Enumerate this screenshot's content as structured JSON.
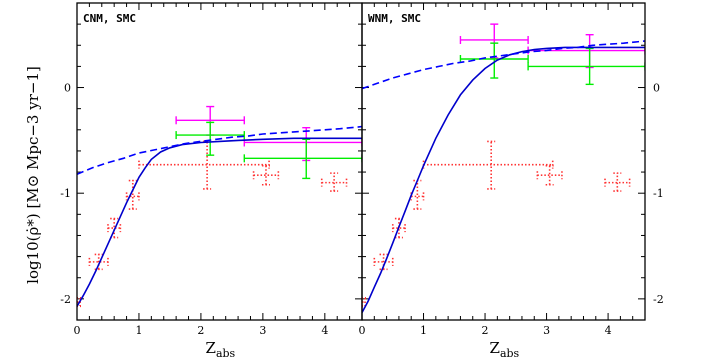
{
  "ylabel": "log10(ρ̇*) [M⊙ Mpc−3 yr−1]",
  "chart_data": [
    {
      "type": "scatter",
      "panel_label": "CNM, SMC",
      "xlabel": "Zabs",
      "xlim": [
        0,
        4.6
      ],
      "ylim": [
        -2.2,
        0.8
      ],
      "xticks": [
        0,
        1,
        2,
        3,
        4
      ],
      "yticks": [
        -2,
        -1,
        0
      ],
      "colors": {
        "model_solid": "#0000cc",
        "model_dashed": "#0000ff",
        "red": "#ff3333",
        "magenta": "#ff00ff",
        "green": "#00ee00"
      },
      "series": [
        {
          "style": "solid",
          "color": "#0000cc",
          "x": [
            0,
            0.1,
            0.2,
            0.3,
            0.4,
            0.5,
            0.6,
            0.7,
            0.8,
            0.9,
            1.0,
            1.1,
            1.2,
            1.35,
            1.5,
            1.7,
            2.0,
            2.3,
            2.6,
            3.0,
            3.5,
            4.0,
            4.6
          ],
          "y": [
            -2.07,
            -1.97,
            -1.86,
            -1.74,
            -1.61,
            -1.48,
            -1.35,
            -1.22,
            -1.09,
            -0.97,
            -0.85,
            -0.76,
            -0.68,
            -0.61,
            -0.57,
            -0.54,
            -0.52,
            -0.51,
            -0.5,
            -0.49,
            -0.48,
            -0.48,
            -0.48
          ]
        },
        {
          "style": "dashed",
          "color": "#0000ff",
          "x": [
            0,
            0.25,
            0.5,
            0.75,
            1.0,
            1.25,
            1.5,
            1.75,
            2.0,
            2.25,
            2.5,
            2.75,
            3.0,
            3.25,
            3.5,
            3.75,
            4.0,
            4.25,
            4.6
          ],
          "y": [
            -0.82,
            -0.76,
            -0.71,
            -0.67,
            -0.62,
            -0.59,
            -0.56,
            -0.53,
            -0.51,
            -0.49,
            -0.47,
            -0.46,
            -0.44,
            -0.43,
            -0.42,
            -0.41,
            -0.4,
            -0.39,
            -0.37
          ]
        }
      ],
      "error_points": [
        {
          "color": "#ff3333",
          "dotted": true,
          "x": 0.0,
          "xlo": 0.0,
          "xhi": 0.05,
          "y": -2.03,
          "ylo": -2.07,
          "yhi": -1.99
        },
        {
          "color": "#ff3333",
          "dotted": true,
          "x": 0.35,
          "xlo": 0.2,
          "xhi": 0.5,
          "y": -1.65,
          "ylo": -1.72,
          "yhi": -1.58
        },
        {
          "color": "#ff3333",
          "dotted": true,
          "x": 0.6,
          "xlo": 0.5,
          "xhi": 0.7,
          "y": -1.33,
          "ylo": -1.42,
          "yhi": -1.24
        },
        {
          "color": "#ff3333",
          "dotted": true,
          "x": 0.9,
          "xlo": 0.8,
          "xhi": 1.0,
          "y": -1.03,
          "ylo": -1.15,
          "yhi": -0.88
        },
        {
          "color": "#ff3333",
          "dotted": true,
          "x": 2.1,
          "xlo": 1.0,
          "xhi": 3.1,
          "y": -0.73,
          "ylo": -0.96,
          "yhi": -0.51
        },
        {
          "color": "#ff3333",
          "dotted": true,
          "x": 3.05,
          "xlo": 2.85,
          "xhi": 3.25,
          "y": -0.83,
          "ylo": -0.92,
          "yhi": -0.74
        },
        {
          "color": "#ff3333",
          "dotted": true,
          "x": 4.15,
          "xlo": 3.95,
          "xhi": 4.35,
          "y": -0.9,
          "ylo": -0.98,
          "yhi": -0.81
        },
        {
          "color": "#ff00ff",
          "dotted": false,
          "x": 2.15,
          "xlo": 1.6,
          "xhi": 2.7,
          "y": -0.31,
          "ylo": -0.45,
          "yhi": -0.18
        },
        {
          "color": "#ff00ff",
          "dotted": false,
          "x": 3.7,
          "xlo": 2.7,
          "xhi": 4.6,
          "y": -0.52,
          "ylo": -0.69,
          "yhi": -0.38
        },
        {
          "color": "#00ee00",
          "dotted": false,
          "x": 2.15,
          "xlo": 1.6,
          "xhi": 2.7,
          "y": -0.45,
          "ylo": -0.64,
          "yhi": -0.33
        },
        {
          "color": "#00ee00",
          "dotted": false,
          "x": 3.7,
          "xlo": 2.7,
          "xhi": 4.6,
          "y": -0.67,
          "ylo": -0.86,
          "yhi": -0.49
        }
      ]
    },
    {
      "type": "scatter",
      "panel_label": "WNM, SMC",
      "xlabel": "Zabs",
      "xlim": [
        0,
        4.6
      ],
      "ylim": [
        -2.2,
        0.8
      ],
      "xticks": [
        0,
        1,
        2,
        3,
        4
      ],
      "yticks": [
        -2,
        -1,
        0
      ],
      "colors": {
        "model_solid": "#0000cc",
        "model_dashed": "#0000ff",
        "red": "#ff3333",
        "magenta": "#ff00ff",
        "green": "#00ee00"
      },
      "series": [
        {
          "style": "solid",
          "color": "#0000cc",
          "x": [
            0,
            0.1,
            0.2,
            0.3,
            0.4,
            0.5,
            0.6,
            0.7,
            0.8,
            0.9,
            1.0,
            1.2,
            1.4,
            1.6,
            1.8,
            2.0,
            2.2,
            2.4,
            2.6,
            2.8,
            3.0,
            3.3,
            3.6,
            4.0,
            4.6
          ],
          "y": [
            -2.13,
            -2.02,
            -1.89,
            -1.76,
            -1.62,
            -1.47,
            -1.32,
            -1.17,
            -1.02,
            -0.88,
            -0.74,
            -0.48,
            -0.26,
            -0.07,
            0.07,
            0.18,
            0.26,
            0.31,
            0.34,
            0.36,
            0.37,
            0.38,
            0.38,
            0.38,
            0.38
          ]
        },
        {
          "style": "dashed",
          "color": "#0000ff",
          "x": [
            0,
            0.1,
            0.25,
            0.5,
            0.75,
            1.0,
            1.25,
            1.5,
            1.75,
            2.0,
            2.25,
            2.5,
            2.75,
            3.0,
            3.25,
            3.5,
            3.75,
            4.0,
            4.25,
            4.6
          ],
          "y": [
            -0.01,
            0.01,
            0.04,
            0.09,
            0.13,
            0.17,
            0.2,
            0.23,
            0.25,
            0.28,
            0.3,
            0.32,
            0.34,
            0.35,
            0.37,
            0.38,
            0.4,
            0.41,
            0.42,
            0.44
          ]
        }
      ],
      "error_points": [
        {
          "color": "#ff3333",
          "dotted": true,
          "x": 0.0,
          "xlo": 0.0,
          "xhi": 0.05,
          "y": -2.03,
          "ylo": -2.07,
          "yhi": -1.99
        },
        {
          "color": "#ff3333",
          "dotted": true,
          "x": 0.35,
          "xlo": 0.2,
          "xhi": 0.5,
          "y": -1.65,
          "ylo": -1.72,
          "yhi": -1.58
        },
        {
          "color": "#ff3333",
          "dotted": true,
          "x": 0.6,
          "xlo": 0.5,
          "xhi": 0.7,
          "y": -1.33,
          "ylo": -1.42,
          "yhi": -1.24
        },
        {
          "color": "#ff3333",
          "dotted": true,
          "x": 0.9,
          "xlo": 0.8,
          "xhi": 1.0,
          "y": -1.03,
          "ylo": -1.15,
          "yhi": -0.88
        },
        {
          "color": "#ff3333",
          "dotted": true,
          "x": 2.1,
          "xlo": 1.0,
          "xhi": 3.1,
          "y": -0.73,
          "ylo": -0.96,
          "yhi": -0.51
        },
        {
          "color": "#ff3333",
          "dotted": true,
          "x": 3.05,
          "xlo": 2.85,
          "xhi": 3.25,
          "y": -0.83,
          "ylo": -0.92,
          "yhi": -0.74
        },
        {
          "color": "#ff3333",
          "dotted": true,
          "x": 4.15,
          "xlo": 3.95,
          "xhi": 4.35,
          "y": -0.9,
          "ylo": -0.98,
          "yhi": -0.81
        },
        {
          "color": "#ff00ff",
          "dotted": false,
          "x": 2.15,
          "xlo": 1.6,
          "xhi": 2.7,
          "y": 0.45,
          "ylo": 0.28,
          "yhi": 0.6
        },
        {
          "color": "#ff00ff",
          "dotted": false,
          "x": 3.7,
          "xlo": 2.7,
          "xhi": 4.6,
          "y": 0.35,
          "ylo": 0.19,
          "yhi": 0.5
        },
        {
          "color": "#00ee00",
          "dotted": false,
          "x": 2.15,
          "xlo": 1.6,
          "xhi": 2.7,
          "y": 0.27,
          "ylo": 0.09,
          "yhi": 0.42
        },
        {
          "color": "#00ee00",
          "dotted": false,
          "x": 3.7,
          "xlo": 2.7,
          "xhi": 4.6,
          "y": 0.2,
          "ylo": 0.03,
          "yhi": 0.37
        }
      ]
    }
  ]
}
